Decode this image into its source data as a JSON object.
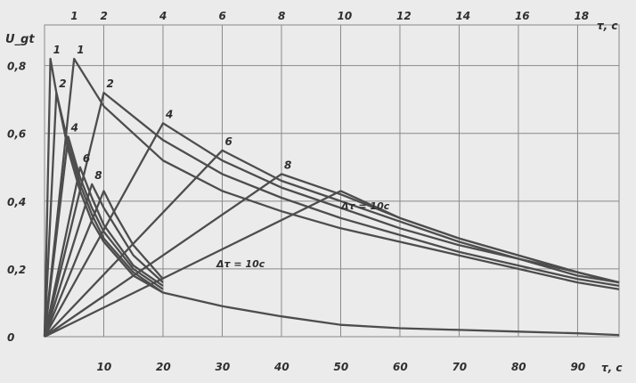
{
  "chart_data": {
    "type": "line",
    "title": "",
    "ylabel": "U_gt",
    "xlabel_bottom": "τ, c",
    "xlabel_top": "τ, c",
    "ylim": [
      0,
      0.92
    ],
    "xlim_bottom": [
      0,
      97
    ],
    "xlim_top": [
      0,
      19.4
    ],
    "grid": true,
    "y_ticks": [
      {
        "value": 0,
        "label": "0"
      },
      {
        "value": 0.2,
        "label": "0,2"
      },
      {
        "value": 0.4,
        "label": "0,4"
      },
      {
        "value": 0.6,
        "label": "0,6"
      },
      {
        "value": 0.8,
        "label": "0,8"
      }
    ],
    "x_ticks_bottom": [
      "10",
      "20",
      "30",
      "40",
      "50",
      "60",
      "70",
      "80",
      "90"
    ],
    "x_ticks_top": [
      "1",
      "2",
      "4",
      "6",
      "8",
      "10",
      "12",
      "14",
      "16",
      "18"
    ],
    "annotations": [
      "Δτ = 10c",
      "Δτ = 10c"
    ],
    "series_groups": [
      {
        "scale": "top",
        "series": [
          {
            "label": "1",
            "points": [
              [
                0,
                0
              ],
              [
                1,
                0.82
              ],
              [
                2,
                0.68
              ],
              [
                4,
                0.52
              ],
              [
                6,
                0.43
              ],
              [
                8,
                0.37
              ],
              [
                10,
                0.32
              ],
              [
                12,
                0.28
              ],
              [
                14,
                0.24
              ],
              [
                16,
                0.2
              ],
              [
                18,
                0.16
              ],
              [
                19.4,
                0.14
              ]
            ]
          },
          {
            "label": "2",
            "points": [
              [
                0,
                0
              ],
              [
                2,
                0.72
              ],
              [
                4,
                0.58
              ],
              [
                6,
                0.48
              ],
              [
                8,
                0.41
              ],
              [
                10,
                0.35
              ],
              [
                12,
                0.3
              ],
              [
                14,
                0.25
              ],
              [
                16,
                0.21
              ],
              [
                18,
                0.17
              ],
              [
                19.4,
                0.15
              ]
            ]
          },
          {
            "label": "4",
            "points": [
              [
                0,
                0
              ],
              [
                4,
                0.63
              ],
              [
                6,
                0.52
              ],
              [
                8,
                0.44
              ],
              [
                10,
                0.38
              ],
              [
                12,
                0.32
              ],
              [
                14,
                0.27
              ],
              [
                16,
                0.23
              ],
              [
                18,
                0.18
              ],
              [
                19.4,
                0.16
              ]
            ]
          },
          {
            "label": "6",
            "points": [
              [
                0,
                0
              ],
              [
                6,
                0.55
              ],
              [
                8,
                0.46
              ],
              [
                10,
                0.4
              ],
              [
                12,
                0.34
              ],
              [
                14,
                0.28
              ],
              [
                16,
                0.23
              ],
              [
                18,
                0.19
              ],
              [
                19.4,
                0.16
              ]
            ]
          },
          {
            "label": "8",
            "points": [
              [
                0,
                0
              ],
              [
                8,
                0.48
              ],
              [
                10,
                0.42
              ],
              [
                12,
                0.35
              ],
              [
                14,
                0.29
              ],
              [
                16,
                0.24
              ],
              [
                18,
                0.19
              ],
              [
                19.4,
                0.16
              ]
            ]
          },
          {
            "label": "",
            "points": [
              [
                0,
                0
              ],
              [
                10,
                0.43
              ],
              [
                11,
                0.39
              ],
              [
                12,
                0.35
              ],
              [
                14,
                0.29
              ],
              [
                16,
                0.24
              ],
              [
                18,
                0.19
              ],
              [
                19.4,
                0.16
              ]
            ]
          }
        ]
      },
      {
        "scale": "bottom",
        "series": [
          {
            "label": "1",
            "points": [
              [
                0,
                0
              ],
              [
                1,
                0.82
              ],
              [
                2,
                0.72
              ],
              [
                4,
                0.55
              ],
              [
                6,
                0.43
              ],
              [
                8,
                0.34
              ],
              [
                10,
                0.28
              ],
              [
                15,
                0.18
              ],
              [
                20,
                0.13
              ],
              [
                30,
                0.09
              ],
              [
                40,
                0.06
              ],
              [
                50,
                0.035
              ],
              [
                60,
                0.025
              ],
              [
                70,
                0.02
              ],
              [
                80,
                0.015
              ],
              [
                90,
                0.01
              ],
              [
                97,
                0.005
              ]
            ]
          },
          {
            "label": "2",
            "points": [
              [
                0,
                0
              ],
              [
                2,
                0.72
              ],
              [
                4,
                0.57
              ],
              [
                6,
                0.45
              ],
              [
                8,
                0.36
              ],
              [
                10,
                0.29
              ],
              [
                15,
                0.19
              ],
              [
                20,
                0.13
              ]
            ]
          },
          {
            "label": "4",
            "points": [
              [
                0,
                0
              ],
              [
                4,
                0.59
              ],
              [
                6,
                0.47
              ],
              [
                8,
                0.38
              ],
              [
                10,
                0.31
              ],
              [
                15,
                0.2
              ],
              [
                20,
                0.14
              ]
            ]
          },
          {
            "label": "6",
            "points": [
              [
                0,
                0
              ],
              [
                6,
                0.5
              ],
              [
                8,
                0.41
              ],
              [
                10,
                0.33
              ],
              [
                15,
                0.21
              ],
              [
                20,
                0.15
              ]
            ]
          },
          {
            "label": "8",
            "points": [
              [
                0,
                0
              ],
              [
                8,
                0.45
              ],
              [
                10,
                0.38
              ],
              [
                15,
                0.24
              ],
              [
                20,
                0.16
              ]
            ]
          },
          {
            "label": "",
            "points": [
              [
                0,
                0
              ],
              [
                10,
                0.43
              ],
              [
                12,
                0.36
              ],
              [
                15,
                0.27
              ],
              [
                20,
                0.17
              ]
            ]
          }
        ]
      }
    ]
  }
}
